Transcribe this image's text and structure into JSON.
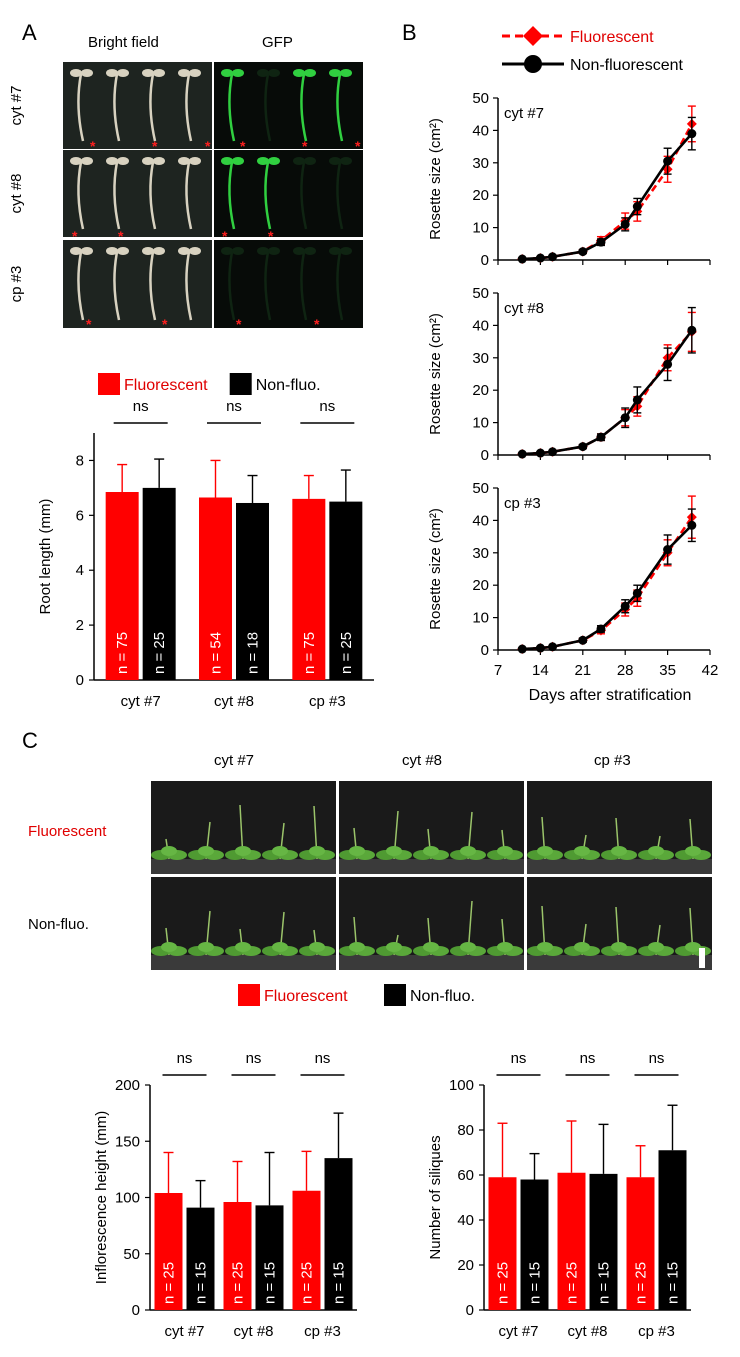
{
  "panelA": {
    "letter": "A",
    "col_headers": [
      "Bright field",
      "GFP"
    ],
    "row_labels": [
      "cyt #7",
      "cyt #8",
      "cp #3"
    ],
    "marker": "*",
    "legend": [
      "Fluorescent",
      "Non-fluo."
    ],
    "chart_data": {
      "type": "bar",
      "categories": [
        "cyt #7",
        "cyt #8",
        "cp #3"
      ],
      "series": [
        {
          "name": "Fluorescent",
          "color": "#ff0000",
          "values": [
            6.85,
            6.65,
            6.6
          ],
          "err": [
            1.0,
            1.35,
            0.85
          ],
          "n": [
            "n = 75",
            "n = 54",
            "n = 75"
          ]
        },
        {
          "name": "Non-fluo.",
          "color": "#000000",
          "values": [
            7.0,
            6.45,
            6.5
          ],
          "err": [
            1.05,
            1.0,
            1.15
          ],
          "n": [
            "n = 25",
            "n = 18",
            "n = 25"
          ]
        }
      ],
      "ylabel": "Root length (mm)",
      "ylim": [
        0,
        9
      ],
      "yticks": [
        "0",
        "2",
        "4",
        "6",
        "8"
      ],
      "annotations": [
        "ns",
        "ns",
        "ns"
      ]
    }
  },
  "panelB": {
    "letter": "B",
    "legend": [
      "Fluorescent",
      "Non-fluorescent"
    ],
    "chart_data": [
      {
        "type": "line",
        "title": "cyt #7",
        "x": [
          11,
          14,
          16,
          21,
          24,
          28,
          30,
          35,
          39
        ],
        "series": [
          {
            "name": "Fluorescent",
            "values": [
              0.3,
              0.6,
              1.0,
              2.6,
              6.0,
              12.0,
              15.0,
              28.0,
              42.0
            ],
            "err": [
              0.2,
              0.3,
              0.4,
              0.6,
              1.2,
              2.5,
              3.0,
              4.0,
              5.5
            ]
          },
          {
            "name": "Non-fluorescent",
            "values": [
              0.3,
              0.6,
              1.0,
              2.6,
              5.5,
              11.0,
              16.5,
              30.5,
              39.0
            ],
            "err": [
              0.2,
              0.3,
              0.4,
              0.5,
              1.0,
              2.0,
              2.5,
              4.0,
              5.0
            ]
          }
        ],
        "ylabel": "Rosette size (cm²)",
        "ylim": [
          0,
          50
        ],
        "yticks": [
          "0",
          "10",
          "20",
          "30",
          "40",
          "50"
        ]
      },
      {
        "type": "line",
        "title": "cyt #8",
        "x": [
          11,
          14,
          16,
          21,
          24,
          28,
          30,
          35,
          39
        ],
        "series": [
          {
            "name": "Fluorescent",
            "values": [
              0.3,
              0.6,
              1.0,
              2.6,
              5.5,
              11.5,
              15.0,
              30.0,
              38.0
            ],
            "err": [
              0.2,
              0.3,
              0.4,
              0.6,
              1.0,
              2.5,
              3.0,
              4.0,
              6.0
            ]
          },
          {
            "name": "Non-fluorescent",
            "values": [
              0.3,
              0.6,
              1.0,
              2.6,
              5.5,
              11.5,
              17.0,
              28.0,
              38.5
            ],
            "err": [
              0.2,
              0.3,
              0.4,
              0.6,
              1.0,
              3.0,
              4.0,
              5.0,
              7.0
            ]
          }
        ],
        "ylabel": "Rosette size (cm²)",
        "ylim": [
          0,
          50
        ],
        "yticks": [
          "0",
          "10",
          "20",
          "30",
          "40",
          "50"
        ]
      },
      {
        "type": "line",
        "title": "cp #3",
        "x": [
          11,
          14,
          16,
          21,
          24,
          28,
          30,
          35,
          39
        ],
        "series": [
          {
            "name": "Fluorescent",
            "values": [
              0.3,
              0.6,
              1.0,
              3.0,
              6.0,
              12.5,
              16.0,
              30.0,
              41.0
            ],
            "err": [
              0.2,
              0.3,
              0.4,
              0.6,
              1.0,
              2.0,
              2.5,
              4.0,
              6.5
            ]
          },
          {
            "name": "Non-fluorescent",
            "values": [
              0.3,
              0.6,
              1.0,
              3.0,
              6.5,
              13.5,
              17.5,
              31.0,
              38.5
            ],
            "err": [
              0.2,
              0.3,
              0.4,
              0.6,
              1.0,
              2.0,
              2.5,
              4.5,
              5.0
            ]
          }
        ],
        "ylabel": "Rosette size (cm²)",
        "ylim": [
          0,
          50
        ],
        "yticks": [
          "0",
          "10",
          "20",
          "30",
          "40",
          "50"
        ],
        "xticks": [
          "7",
          "14",
          "21",
          "28",
          "35",
          "42"
        ],
        "xlabel": "Days after stratification"
      }
    ]
  },
  "panelC": {
    "letter": "C",
    "col_headers": [
      "cyt #7",
      "cyt #8",
      "cp #3"
    ],
    "row_labels": [
      "Fluorescent",
      "Non-fluo."
    ],
    "legend": [
      "Fluorescent",
      "Non-fluo."
    ],
    "chart_data": [
      {
        "type": "bar",
        "categories": [
          "cyt #7",
          "cyt #8",
          "cp #3"
        ],
        "series": [
          {
            "name": "Fluorescent",
            "color": "#ff0000",
            "values": [
              104,
              96,
              106
            ],
            "err": [
              36,
              36,
              35
            ],
            "n": [
              "n = 25",
              "n = 25",
              "n = 25"
            ]
          },
          {
            "name": "Non-fluo.",
            "color": "#000000",
            "values": [
              91,
              93,
              135
            ],
            "err": [
              24,
              47,
              40
            ],
            "n": [
              "n = 15",
              "n = 15",
              "n = 15"
            ]
          }
        ],
        "ylabel": "Inflorescence height (mm)",
        "ylim": [
          0,
          200
        ],
        "yticks": [
          "0",
          "50",
          "100",
          "150",
          "200"
        ],
        "annotations": [
          "ns",
          "ns",
          "ns"
        ]
      },
      {
        "type": "bar",
        "categories": [
          "cyt #7",
          "cyt #8",
          "cp #3"
        ],
        "series": [
          {
            "name": "Fluorescent",
            "color": "#ff0000",
            "values": [
              59,
              61,
              59
            ],
            "err": [
              24,
              23,
              14
            ],
            "n": [
              "n = 25",
              "n = 25",
              "n = 25"
            ]
          },
          {
            "name": "Non-fluo.",
            "color": "#000000",
            "values": [
              58,
              60.5,
              71
            ],
            "err": [
              11.5,
              22,
              20
            ],
            "n": [
              "n = 15",
              "n = 15",
              "n = 15"
            ]
          }
        ],
        "ylabel": "Number of siliques",
        "ylim": [
          0,
          100
        ],
        "yticks": [
          "0",
          "20",
          "40",
          "60",
          "80",
          "100"
        ],
        "annotations": [
          "ns",
          "ns",
          "ns"
        ]
      }
    ]
  }
}
